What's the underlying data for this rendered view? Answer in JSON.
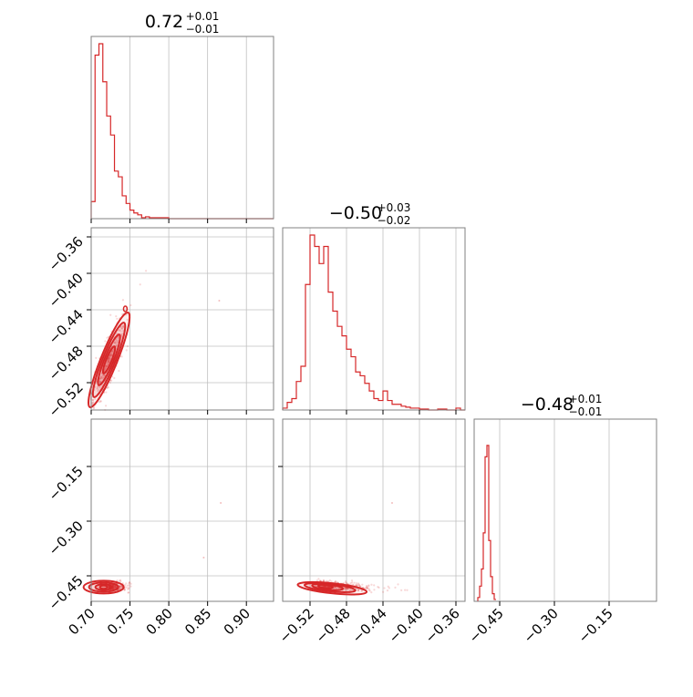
{
  "chart_data": [
    {
      "type": "histogram",
      "panel": "marginal-x",
      "title": {
        "median": "0.72",
        "plus": "+0.01",
        "minus": "−0.01"
      },
      "xlim": [
        0.7,
        0.935
      ],
      "xticks": [
        0.7,
        0.75,
        0.8,
        0.85,
        0.9
      ],
      "color": "#d62728",
      "bins": [
        0.7,
        0.705,
        0.71,
        0.715,
        0.72,
        0.725,
        0.73,
        0.735,
        0.74,
        0.745,
        0.75,
        0.755,
        0.76,
        0.765,
        0.77,
        0.775,
        0.78,
        0.8,
        0.935
      ],
      "density": [
        0.09,
        0.86,
        0.92,
        0.72,
        0.54,
        0.44,
        0.25,
        0.22,
        0.12,
        0.08,
        0.045,
        0.03,
        0.02,
        0.005,
        0.01,
        0.005,
        0.005,
        0.0
      ]
    },
    {
      "type": "histogram",
      "panel": "marginal-y",
      "title": {
        "median": "−0.50",
        "plus": "+0.03",
        "minus": "−0.02"
      },
      "xlim": [
        -0.55,
        -0.35
      ],
      "xticks": [
        -0.52,
        -0.48,
        -0.44,
        -0.4,
        -0.36
      ],
      "color": "#d62728",
      "bins": [
        -0.55,
        -0.545,
        -0.54,
        -0.535,
        -0.53,
        -0.525,
        -0.52,
        -0.515,
        -0.51,
        -0.505,
        -0.5,
        -0.495,
        -0.49,
        -0.485,
        -0.48,
        -0.475,
        -0.47,
        -0.465,
        -0.46,
        -0.455,
        -0.45,
        -0.445,
        -0.44,
        -0.435,
        -0.43,
        -0.425,
        -0.42,
        -0.415,
        -0.41,
        -0.4,
        -0.39,
        -0.38,
        -0.37,
        -0.36,
        -0.355,
        -0.35
      ],
      "density": [
        0.01,
        0.04,
        0.06,
        0.15,
        0.23,
        0.66,
        0.92,
        0.86,
        0.77,
        0.86,
        0.62,
        0.52,
        0.44,
        0.39,
        0.32,
        0.28,
        0.2,
        0.18,
        0.14,
        0.1,
        0.06,
        0.05,
        0.1,
        0.05,
        0.03,
        0.03,
        0.02,
        0.015,
        0.01,
        0.005,
        0.0,
        0.005,
        0.0,
        0.01,
        0.0
      ]
    },
    {
      "type": "histogram",
      "panel": "marginal-z",
      "title": {
        "median": "−0.48",
        "plus": "+0.01",
        "minus": "−0.01"
      },
      "xlim": [
        -0.52,
        -0.02
      ],
      "xticks": [
        -0.45,
        -0.3,
        -0.15
      ],
      "color": "#d62728",
      "bins": [
        -0.51,
        -0.505,
        -0.5,
        -0.495,
        -0.49,
        -0.485,
        -0.48,
        -0.475,
        -0.47,
        -0.465,
        -0.46
      ],
      "density": [
        0.02,
        0.08,
        0.17,
        0.36,
        0.76,
        0.82,
        0.32,
        0.13,
        0.04,
        0.01
      ]
    },
    {
      "type": "scatter-contour",
      "panel": "x-vs-y",
      "xlim": [
        0.7,
        0.935
      ],
      "ylim": [
        -0.55,
        -0.35
      ],
      "yticks": [
        -0.36,
        -0.4,
        -0.44,
        -0.48,
        -0.52
      ],
      "color": "#d62728",
      "correlation_center": [
        0.72,
        -0.5
      ],
      "contour_levels": [
        "0.5",
        "1.0",
        "1.5",
        "2.0"
      ]
    },
    {
      "type": "scatter-contour",
      "panel": "x-vs-z",
      "xlim": [
        0.7,
        0.935
      ],
      "ylim": [
        -0.52,
        -0.02
      ],
      "xticks": [
        0.7,
        0.75,
        0.8,
        0.85,
        0.9
      ],
      "yticks": [
        -0.15,
        -0.3,
        -0.45
      ],
      "color": "#d62728"
    },
    {
      "type": "scatter-contour",
      "panel": "y-vs-z",
      "xlim": [
        -0.55,
        -0.35
      ],
      "ylim": [
        -0.52,
        -0.02
      ],
      "xticks": [
        -0.52,
        -0.48,
        -0.44,
        -0.4,
        -0.36
      ],
      "color": "#d62728"
    }
  ],
  "tick_text": {
    "x_bottom_left": [
      "0.70",
      "0.75",
      "0.80",
      "0.85",
      "0.90"
    ],
    "x_bottom_mid": [
      "−0.52",
      "−0.48",
      "−0.44",
      "−0.40",
      "−0.36"
    ],
    "x_bottom_right": [
      "−0.45",
      "−0.30",
      "−0.15"
    ],
    "y_mid_left": [
      "−0.36",
      "−0.40",
      "−0.44",
      "−0.48",
      "−0.52"
    ],
    "y_bottom_left": [
      "−0.15",
      "−0.30",
      "−0.45"
    ]
  }
}
